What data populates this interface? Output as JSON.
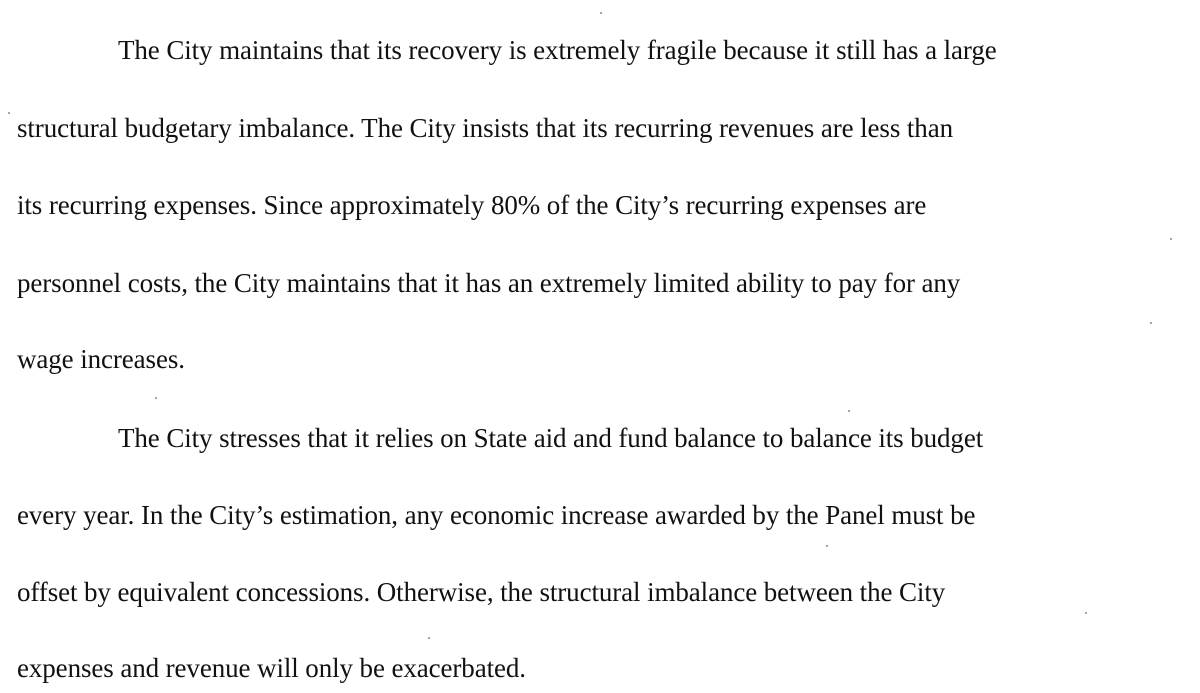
{
  "paragraphs": [
    {
      "lines": [
        "The City maintains that its recovery is extremely fragile because it still has a large",
        "structural budgetary imbalance. The City insists that its recurring revenues are less than",
        "its recurring expenses. Since approximately 80% of the City’s recurring expenses are",
        "personnel costs, the City maintains that it has an extremely limited ability to pay for any",
        "wage increases."
      ]
    },
    {
      "lines": [
        "The City stresses that it relies on State aid and fund balance to balance its budget",
        "every year. In the City’s estimation, any economic increase awarded by the Panel must be",
        "offset by equivalent concessions. Otherwise, the structural imbalance between the City",
        "expenses and revenue will only be exacerbated."
      ]
    }
  ]
}
